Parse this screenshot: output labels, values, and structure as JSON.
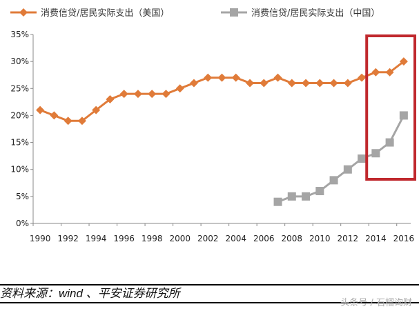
{
  "chart_data": {
    "type": "line",
    "x": [
      1990,
      1991,
      1992,
      1993,
      1994,
      1995,
      1996,
      1997,
      1998,
      1999,
      2000,
      2001,
      2002,
      2003,
      2004,
      2005,
      2006,
      2007,
      2008,
      2009,
      2010,
      2011,
      2012,
      2013,
      2014,
      2015,
      2016
    ],
    "xticks": [
      "1990",
      "1992",
      "1994",
      "1996",
      "1998",
      "2000",
      "2002",
      "2004",
      "2006",
      "2008",
      "2010",
      "2012",
      "2014",
      "2016"
    ],
    "yticks": [
      "0%",
      "5%",
      "10%",
      "15%",
      "20%",
      "25%",
      "30%",
      "35%"
    ],
    "ylim": [
      0,
      35
    ],
    "grid": false,
    "legend_position": "top",
    "series": [
      {
        "name": "消费信贷/居民实际支出（美国）",
        "color": "#E07B39",
        "marker": "diamond",
        "values": [
          21,
          20,
          19,
          19,
          21,
          23,
          24,
          24,
          24,
          24,
          25,
          26,
          27,
          27,
          27,
          26,
          26,
          27,
          26,
          26,
          26,
          26,
          26,
          27,
          28,
          28,
          30
        ]
      },
      {
        "name": "消费信贷/居民实际支出（中国）",
        "color": "#A5A5A5",
        "marker": "square",
        "values": [
          null,
          null,
          null,
          null,
          null,
          null,
          null,
          null,
          null,
          null,
          null,
          null,
          null,
          null,
          null,
          null,
          null,
          4,
          5,
          5,
          6,
          8,
          10,
          12,
          13,
          15,
          20
        ]
      }
    ],
    "annotation": {
      "type": "highlight-box",
      "color": "#C0282D",
      "x_range": [
        2013.5,
        2016.5
      ]
    }
  },
  "source": "资料来源：wind 、平安证券研究所",
  "watermark": "头条号 / 石榴询财"
}
